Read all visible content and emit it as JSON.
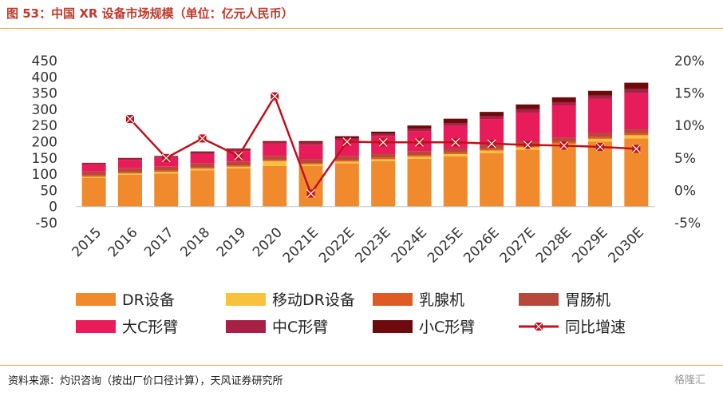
{
  "title": "图 53：中国 XR 设备市场规模（单位：亿元人民币）",
  "source": "资料来源：灼识咨询（按出厂价口径计算），天风证券研究所",
  "watermark": "格隆汇",
  "chart_data": {
    "type": "bar",
    "stacked": true,
    "categories": [
      "2015",
      "2016",
      "2017",
      "2018",
      "2019",
      "2020",
      "2021E",
      "2022E",
      "2023E",
      "2024E",
      "2025E",
      "2026E",
      "2027E",
      "2028E",
      "2029E",
      "2030E"
    ],
    "ylim": [
      -50,
      450
    ],
    "yticks": [
      -50,
      0,
      50,
      100,
      150,
      200,
      250,
      300,
      350,
      400,
      450
    ],
    "y2lim": [
      -5,
      20
    ],
    "y2ticks": [
      "-5%",
      "0%",
      "5%",
      "10%",
      "15%",
      "20%"
    ],
    "y2tick_values": [
      -5,
      0,
      5,
      10,
      15,
      20
    ],
    "grid": false,
    "series": [
      {
        "name": "DR设备",
        "color": "#F08A2C",
        "values": [
          88,
          98,
          102,
          112,
          118,
          125,
          125,
          133,
          140,
          147,
          155,
          165,
          175,
          185,
          200,
          210
        ]
      },
      {
        "name": "移动DR设备",
        "color": "#F9C23C",
        "values": [
          4,
          4,
          5,
          5,
          5,
          15,
          5,
          6,
          6,
          7,
          7,
          8,
          8,
          9,
          9,
          10
        ]
      },
      {
        "name": "乳腺机",
        "color": "#E05A24",
        "values": [
          4,
          4,
          4,
          4,
          4,
          4,
          4,
          4,
          5,
          5,
          5,
          5,
          5,
          6,
          6,
          6
        ]
      },
      {
        "name": "胃肠机",
        "color": "#B8483A",
        "values": [
          12,
          12,
          12,
          12,
          12,
          12,
          12,
          12,
          12,
          12,
          12,
          12,
          12,
          12,
          12,
          12
        ]
      },
      {
        "name": "大C形臂",
        "color": "#E81C5A",
        "values": [
          22,
          26,
          27,
          30,
          32,
          38,
          45,
          50,
          55,
          62,
          70,
          80,
          90,
          100,
          105,
          112
        ]
      },
      {
        "name": "中C形臂",
        "color": "#A82046",
        "values": [
          3,
          4,
          4,
          4,
          5,
          5,
          6,
          6,
          6,
          7,
          8,
          9,
          10,
          10,
          10,
          12
        ]
      },
      {
        "name": "小C形臂",
        "color": "#6E0A0C",
        "values": [
          2,
          2,
          2,
          3,
          3,
          3,
          5,
          6,
          7,
          10,
          14,
          13,
          15,
          15,
          15,
          20
        ]
      }
    ],
    "line": {
      "name": "同比增速",
      "color": "#C0101A",
      "axis": "y2",
      "values": [
        null,
        11.0,
        5.0,
        8.0,
        5.3,
        14.5,
        -0.5,
        7.5,
        7.4,
        7.4,
        7.4,
        7.2,
        7.0,
        6.9,
        6.7,
        6.4
      ]
    }
  }
}
